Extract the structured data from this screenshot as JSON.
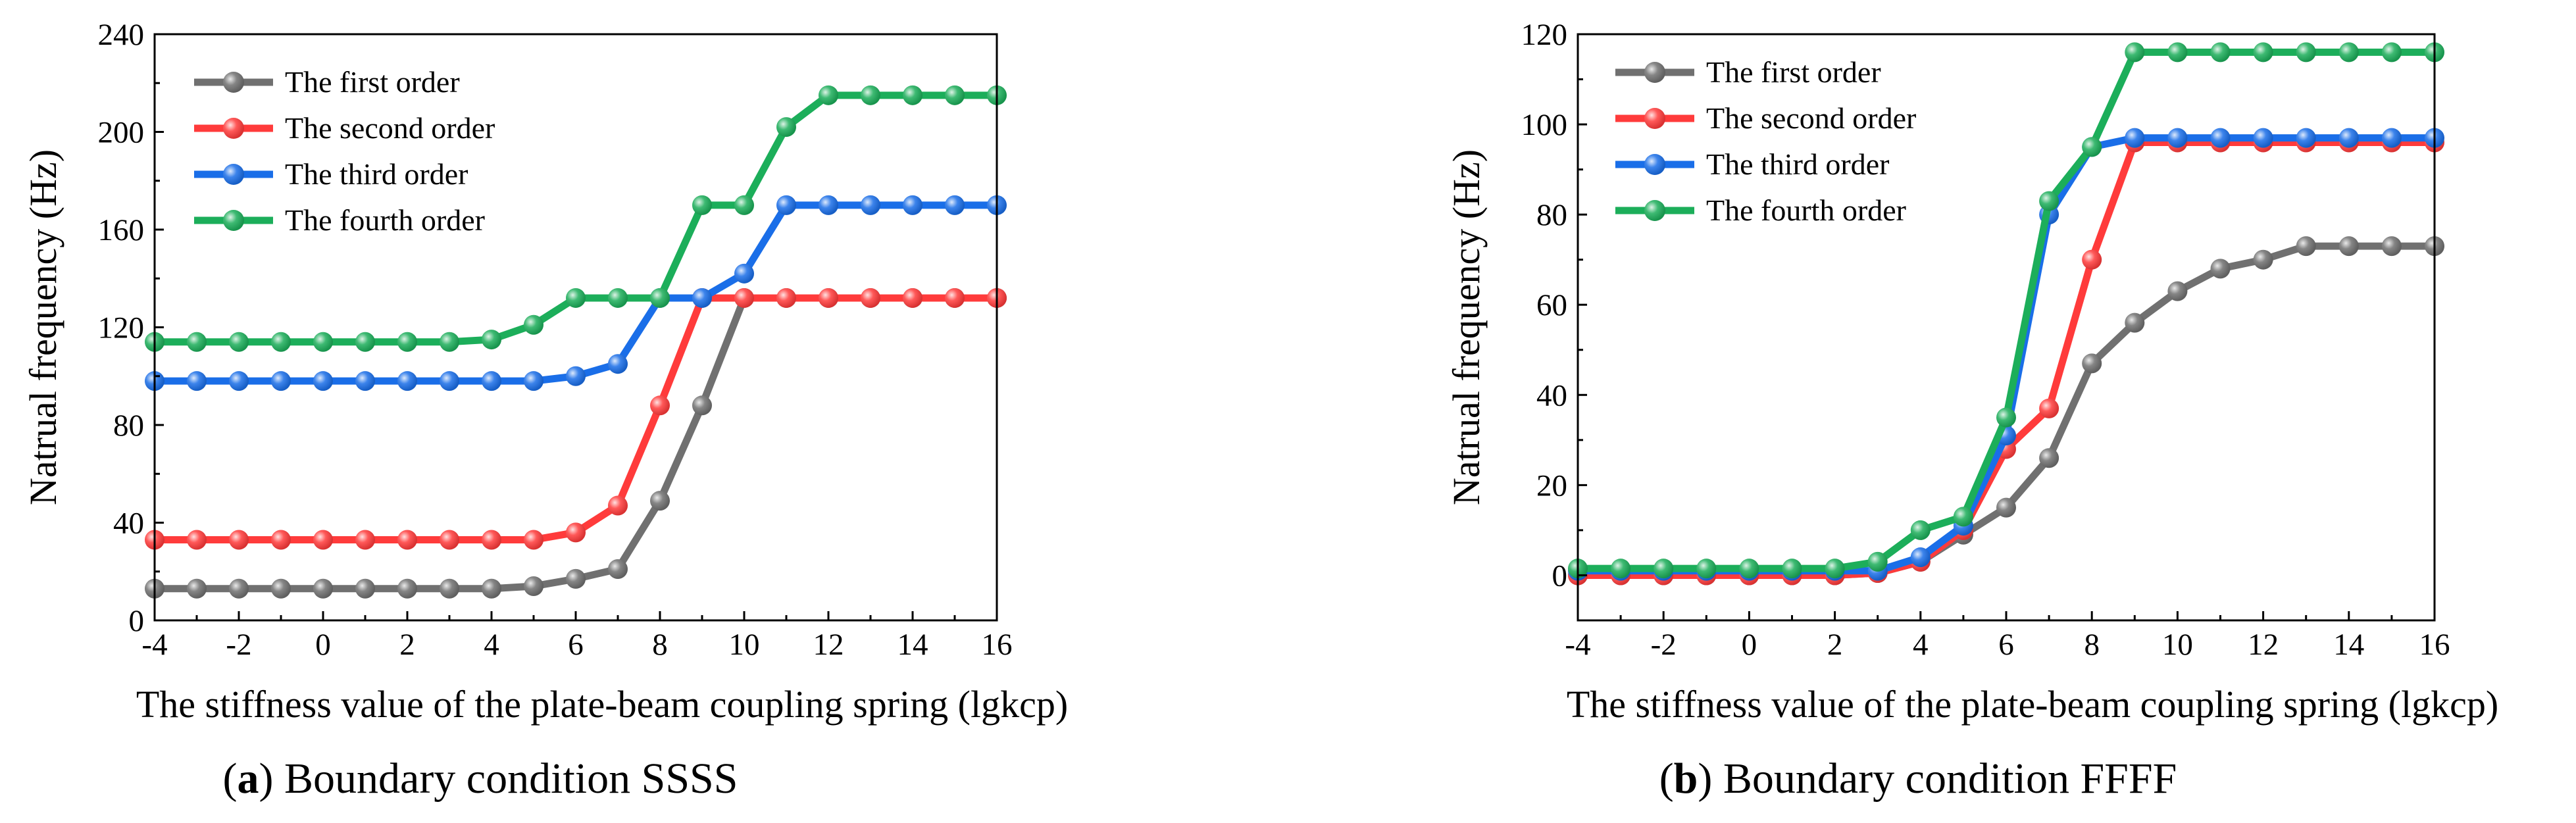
{
  "chart_data": [
    {
      "type": "line",
      "panel_letter": "a",
      "caption_suffix": "Boundary condition SSSS",
      "xlabel": "The stiffness value of the plate-beam coupling spring (lgkcp)",
      "ylabel": "Natrual frequency (Hz)",
      "xlim": [
        -4,
        16
      ],
      "ylim": [
        0,
        240
      ],
      "xticks": [
        -4,
        -2,
        0,
        2,
        4,
        6,
        8,
        10,
        12,
        14,
        16
      ],
      "yticks": [
        0,
        40,
        80,
        120,
        160,
        200,
        240
      ],
      "x": [
        -4,
        -3,
        -2,
        -1,
        0,
        1,
        2,
        3,
        4,
        5,
        6,
        7,
        8,
        9,
        10,
        11,
        12,
        13,
        14,
        15,
        16
      ],
      "legend_position": "top-left",
      "series": [
        {
          "name": "The first order",
          "color": "#707070",
          "values": [
            13,
            13,
            13,
            13,
            13,
            13,
            13,
            13,
            13,
            14,
            17,
            21,
            49,
            88,
            132,
            132,
            132,
            132,
            132,
            132,
            132
          ]
        },
        {
          "name": "The second order",
          "color": "#ff3b3b",
          "values": [
            33,
            33,
            33,
            33,
            33,
            33,
            33,
            33,
            33,
            33,
            36,
            47,
            88,
            132,
            132,
            132,
            132,
            132,
            132,
            132,
            132
          ]
        },
        {
          "name": "The third order",
          "color": "#1a6ee8",
          "values": [
            98,
            98,
            98,
            98,
            98,
            98,
            98,
            98,
            98,
            98,
            100,
            105,
            132,
            132,
            142,
            170,
            170,
            170,
            170,
            170,
            170
          ]
        },
        {
          "name": "The fourth order",
          "color": "#1cae5a",
          "values": [
            114,
            114,
            114,
            114,
            114,
            114,
            114,
            114,
            115,
            121,
            132,
            132,
            132,
            170,
            170,
            202,
            215,
            215,
            215,
            215,
            215
          ]
        }
      ]
    },
    {
      "type": "line",
      "panel_letter": "b",
      "caption_suffix": "Boundary condition FFFF",
      "xlabel": "The stiffness value of the plate-beam coupling spring (lgkcp)",
      "ylabel": "Natrual frequency (Hz)",
      "xlim": [
        -4,
        16
      ],
      "ylim": [
        -10,
        120
      ],
      "xticks": [
        -4,
        -2,
        0,
        2,
        4,
        6,
        8,
        10,
        12,
        14,
        16
      ],
      "yticks": [
        0,
        20,
        40,
        60,
        80,
        100,
        120
      ],
      "x": [
        -4,
        -3,
        -2,
        -1,
        0,
        1,
        2,
        3,
        4,
        5,
        6,
        7,
        8,
        9,
        10,
        11,
        12,
        13,
        14,
        15,
        16
      ],
      "legend_position": "top-left",
      "series": [
        {
          "name": "The first order",
          "color": "#707070",
          "values": [
            0,
            0,
            0,
            0,
            0,
            0,
            0,
            0.5,
            3,
            9,
            15,
            26,
            47,
            56,
            63,
            68,
            70,
            73,
            73,
            73,
            73
          ]
        },
        {
          "name": "The second order",
          "color": "#ff3b3b",
          "values": [
            0,
            0,
            0,
            0,
            0,
            0,
            0,
            0.5,
            3,
            10,
            28,
            37,
            70,
            96,
            96,
            96,
            96,
            96,
            96,
            96,
            96
          ]
        },
        {
          "name": "The third order",
          "color": "#1a6ee8",
          "values": [
            1,
            1,
            1,
            1,
            1,
            1,
            1,
            1,
            4,
            11,
            31,
            80,
            95,
            97,
            97,
            97,
            97,
            97,
            97,
            97,
            97
          ]
        },
        {
          "name": "The fourth order",
          "color": "#1cae5a",
          "values": [
            1.5,
            1.5,
            1.5,
            1.5,
            1.5,
            1.5,
            1.5,
            3,
            10,
            13,
            35,
            83,
            95,
            116,
            116,
            116,
            116,
            116,
            116,
            116,
            116
          ]
        }
      ]
    }
  ]
}
